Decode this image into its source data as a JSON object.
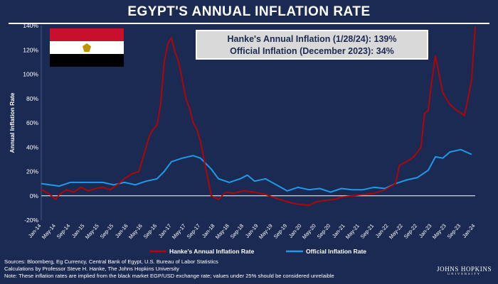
{
  "title": "EGYPT'S ANNUAL INFLATION RATE",
  "info_box": {
    "line1": "Hanke's Annual Inflation (1/28/24): 139%",
    "line2": "Official Inflation (December 2023): 34%"
  },
  "flag": {
    "icon": "egypt-flag-icon",
    "colors": [
      "#c8102e",
      "#ffffff",
      "#000000"
    ]
  },
  "footer": {
    "line1": "Sources: Bloomberg, Eg Currency, Central Bank of Egypt, U.S. Bureau of Labor Statistics",
    "line2": "Calculations by Professor Steve H. Hanke, The Johns Hopkins University",
    "line3": "Note: These inflation rates are implied from the black market EGP/USD exchange rate; values under 25% should be considered unrelaible"
  },
  "logo": {
    "name": "JOHNS HOPKINS",
    "sub": "UNIVERSITY"
  },
  "colors": {
    "background": "#1b2a52",
    "hanke": "#c00000",
    "official": "#1e9be8",
    "zero_line": "#ffffff",
    "axis_text": "#ffffff"
  },
  "chart_data": {
    "type": "line",
    "ylabel": "Annual Inflation Rate",
    "xlabel": "",
    "ylim": [
      -20,
      140
    ],
    "yticks": [
      -20,
      0,
      20,
      40,
      60,
      80,
      100,
      120,
      140
    ],
    "ytick_labels": [
      "-20%",
      "0%",
      "20%",
      "40%",
      "60%",
      "80%",
      "100%",
      "120%",
      "140%"
    ],
    "xlim": [
      "2014-01",
      "2024-01"
    ],
    "xtick_labels": [
      "Jan-14",
      "May-14",
      "Sep-14",
      "Jan-15",
      "May-15",
      "Sep-15",
      "Jan-16",
      "May-16",
      "Sep-16",
      "Jan-17",
      "May-17",
      "Sep-17",
      "Jan-18",
      "May-18",
      "Sep-18",
      "Jan-19",
      "May-19",
      "Sep-19",
      "Jan-20",
      "May-20",
      "Sep-20",
      "Jan-21",
      "May-21",
      "Sep-21",
      "Jan-22",
      "May-22",
      "Sep-22",
      "Jan-23",
      "May-23",
      "Sep-23",
      "Jan-24"
    ],
    "legend_position": "bottom",
    "series": [
      {
        "name": "Hanke's Annual Inflation Rate",
        "color": "#c00000",
        "points": [
          [
            "2014-01",
            5
          ],
          [
            "2014-03",
            2
          ],
          [
            "2014-05",
            -3
          ],
          [
            "2014-06",
            1
          ],
          [
            "2014-08",
            5
          ],
          [
            "2014-10",
            3
          ],
          [
            "2014-12",
            7
          ],
          [
            "2015-02",
            4
          ],
          [
            "2015-04",
            6
          ],
          [
            "2015-06",
            7
          ],
          [
            "2015-08",
            5
          ],
          [
            "2015-10",
            9
          ],
          [
            "2015-12",
            14
          ],
          [
            "2016-02",
            18
          ],
          [
            "2016-04",
            20
          ],
          [
            "2016-05",
            30
          ],
          [
            "2016-06",
            40
          ],
          [
            "2016-07",
            50
          ],
          [
            "2016-08",
            55
          ],
          [
            "2016-09",
            58
          ],
          [
            "2016-10",
            75
          ],
          [
            "2016-11",
            110
          ],
          [
            "2016-12",
            125
          ],
          [
            "2017-01",
            130
          ],
          [
            "2017-02",
            118
          ],
          [
            "2017-03",
            110
          ],
          [
            "2017-04",
            95
          ],
          [
            "2017-05",
            80
          ],
          [
            "2017-06",
            72
          ],
          [
            "2017-07",
            60
          ],
          [
            "2017-08",
            55
          ],
          [
            "2017-09",
            45
          ],
          [
            "2017-10",
            30
          ],
          [
            "2017-11",
            15
          ],
          [
            "2017-12",
            0
          ],
          [
            "2018-02",
            -3
          ],
          [
            "2018-04",
            3
          ],
          [
            "2018-06",
            2
          ],
          [
            "2018-09",
            4
          ],
          [
            "2018-12",
            3
          ],
          [
            "2019-03",
            1
          ],
          [
            "2019-06",
            -2
          ],
          [
            "2019-09",
            -5
          ],
          [
            "2019-12",
            -7
          ],
          [
            "2020-03",
            -8
          ],
          [
            "2020-05",
            -5
          ],
          [
            "2020-07",
            -4
          ],
          [
            "2020-10",
            -3
          ],
          [
            "2020-12",
            -1
          ],
          [
            "2021-03",
            0
          ],
          [
            "2021-06",
            1
          ],
          [
            "2021-09",
            2
          ],
          [
            "2021-12",
            5
          ],
          [
            "2022-03",
            10
          ],
          [
            "2022-04",
            25
          ],
          [
            "2022-06",
            28
          ],
          [
            "2022-08",
            32
          ],
          [
            "2022-10",
            40
          ],
          [
            "2022-11",
            68
          ],
          [
            "2022-12",
            70
          ],
          [
            "2023-01",
            95
          ],
          [
            "2023-02",
            115
          ],
          [
            "2023-03",
            100
          ],
          [
            "2023-04",
            85
          ],
          [
            "2023-05",
            80
          ],
          [
            "2023-06",
            75
          ],
          [
            "2023-08",
            70
          ],
          [
            "2023-10",
            66
          ],
          [
            "2023-11",
            80
          ],
          [
            "2023-12",
            95
          ],
          [
            "2024-01",
            139
          ]
        ]
      },
      {
        "name": "Official Inflation Rate",
        "color": "#1e9be8",
        "points": [
          [
            "2014-01",
            10
          ],
          [
            "2014-06",
            8
          ],
          [
            "2014-09",
            11
          ],
          [
            "2014-12",
            11
          ],
          [
            "2015-03",
            11
          ],
          [
            "2015-06",
            11
          ],
          [
            "2015-09",
            9
          ],
          [
            "2015-12",
            11
          ],
          [
            "2016-03",
            9
          ],
          [
            "2016-06",
            12
          ],
          [
            "2016-09",
            14
          ],
          [
            "2016-11",
            20
          ],
          [
            "2016-12",
            24
          ],
          [
            "2017-01",
            28
          ],
          [
            "2017-04",
            31
          ],
          [
            "2017-07",
            33
          ],
          [
            "2017-09",
            31
          ],
          [
            "2017-12",
            22
          ],
          [
            "2018-02",
            14
          ],
          [
            "2018-05",
            11
          ],
          [
            "2018-08",
            14
          ],
          [
            "2018-10",
            17
          ],
          [
            "2018-12",
            12
          ],
          [
            "2019-03",
            14
          ],
          [
            "2019-06",
            9
          ],
          [
            "2019-09",
            4
          ],
          [
            "2019-12",
            7
          ],
          [
            "2020-03",
            5
          ],
          [
            "2020-06",
            6
          ],
          [
            "2020-09",
            3
          ],
          [
            "2020-12",
            6
          ],
          [
            "2021-03",
            5
          ],
          [
            "2021-06",
            5
          ],
          [
            "2021-09",
            7
          ],
          [
            "2021-12",
            6
          ],
          [
            "2022-03",
            10
          ],
          [
            "2022-06",
            13
          ],
          [
            "2022-09",
            15
          ],
          [
            "2022-12",
            21
          ],
          [
            "2023-02",
            32
          ],
          [
            "2023-04",
            31
          ],
          [
            "2023-06",
            36
          ],
          [
            "2023-09",
            38
          ],
          [
            "2023-12",
            34
          ]
        ]
      }
    ]
  }
}
